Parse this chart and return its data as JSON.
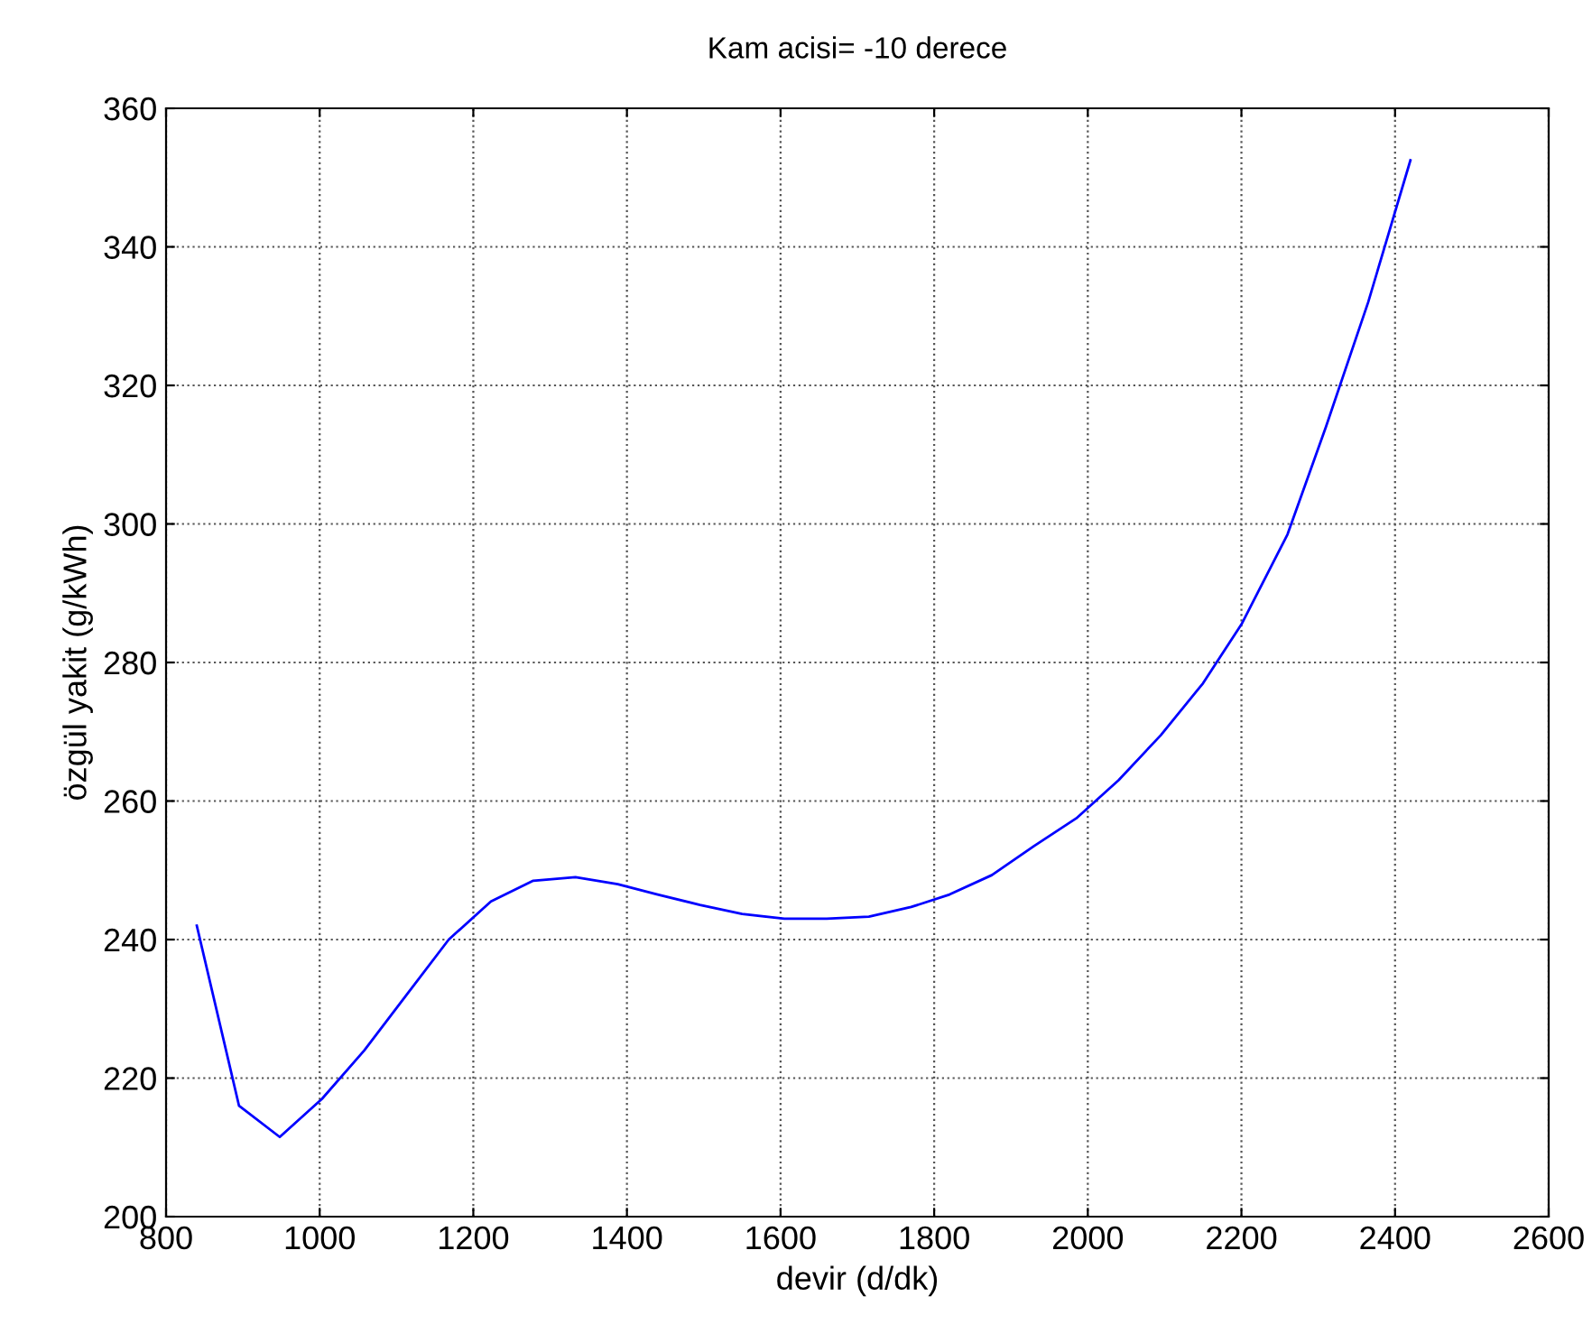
{
  "chart_data": {
    "type": "line",
    "title": "Kam acisi= -10 derece",
    "xlabel": "devir (d/dk)",
    "ylabel": "özgül yakit (g/kWh)",
    "xlim": [
      800,
      2600
    ],
    "xticks": [
      800,
      1000,
      1200,
      1400,
      1600,
      1800,
      2000,
      2200,
      2400,
      2600
    ],
    "ylim": [
      200,
      360
    ],
    "yticks": [
      200,
      220,
      240,
      260,
      280,
      300,
      320,
      340,
      360
    ],
    "grid": true,
    "line_style": "solid",
    "marker": "none",
    "series": [
      {
        "color": "#0000ff",
        "x": [
          840,
          895,
          948,
          1003,
          1058,
          1113,
          1168,
          1223,
          1278,
          1333,
          1388,
          1440,
          1495,
          1550,
          1605,
          1660,
          1715,
          1770,
          1820,
          1875,
          1930,
          1985,
          2040,
          2095,
          2150,
          2200,
          2260,
          2310,
          2365,
          2420
        ],
        "values": [
          242,
          216,
          211.5,
          217,
          224,
          232,
          240,
          245.5,
          248.5,
          249,
          248,
          246.5,
          245,
          243.7,
          243,
          243,
          243.3,
          244.7,
          246.5,
          249.3,
          253.5,
          257.5,
          263,
          269.5,
          277,
          285.5,
          298.5,
          314,
          332,
          352.5
        ]
      }
    ]
  }
}
